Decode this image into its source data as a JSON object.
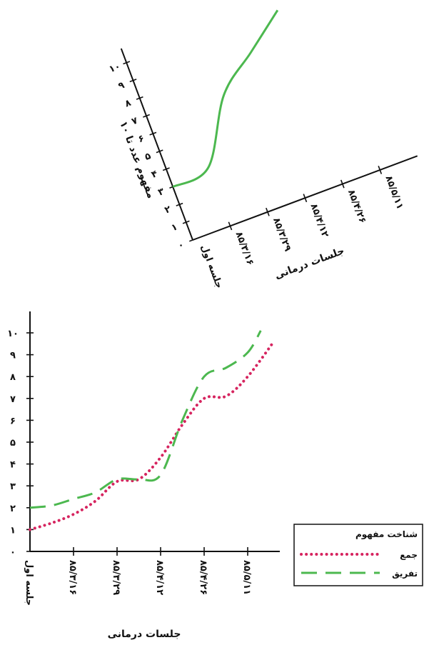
{
  "chart_data": [
    {
      "type": "line",
      "title": "",
      "xlabel": "جلسات درمانی",
      "ylabel": "مفهوم عدد تا ۱۰",
      "categories": [
        "جلسه اول",
        "۸۵/۳/۱۶",
        "۸۵/۳/۲۹",
        "۸۵/۴/۱۲",
        "۸۵/۴/۲۶",
        "۸۵/۵/۱۱"
      ],
      "y_ticks": [
        "۰",
        "۱",
        "۲",
        "۳",
        "۴",
        "۵",
        "۶",
        "۷",
        "۸",
        "۹",
        "۱۰"
      ],
      "ylim": [
        0,
        10
      ],
      "grid": false,
      "series": [
        {
          "values": [
            3,
            3.3,
            6.6,
            8.2,
            9.8,
            null
          ],
          "color": "#4cb84f"
        }
      ]
    },
    {
      "type": "line",
      "title": "",
      "xlabel": "جلسات درمانی",
      "ylabel": "",
      "categories": [
        "جلسه اول",
        "۸۵/۳/۱۶",
        "۸۵/۳/۲۹",
        "۸۵/۴/۱۲",
        "۸۵/۴/۲۶",
        "۸۵/۵/۱۱"
      ],
      "y_ticks": [
        "۰",
        "۱",
        "۲",
        "۳",
        "۴",
        "۵",
        "۶",
        "۷",
        "۸",
        "۹",
        "۱۰"
      ],
      "ylim": [
        0,
        10
      ],
      "grid": false,
      "legend": {
        "title": "شناخت مفهوم",
        "position": "bottom-right"
      },
      "series": [
        {
          "name": "جمع",
          "style": "dotted",
          "color": "#d6245f",
          "x": [
            0,
            0.5,
            1,
            1.5,
            2,
            2.5,
            3,
            3.5,
            4,
            4.5,
            5,
            5.6
          ],
          "values": [
            1,
            1.3,
            1.7,
            2.3,
            3.2,
            3.3,
            4.3,
            5.8,
            7.0,
            7.1,
            8.0,
            9.6
          ]
        },
        {
          "name": "تفریق",
          "style": "dashed",
          "color": "#4cb84f",
          "x": [
            0,
            0.5,
            1,
            1.5,
            2,
            2.5,
            3,
            3.5,
            4,
            4.5,
            5,
            5.3
          ],
          "values": [
            2,
            2.1,
            2.4,
            2.7,
            3.3,
            3.3,
            3.5,
            6.0,
            8.0,
            8.4,
            9.1,
            10.1
          ]
        }
      ]
    }
  ]
}
